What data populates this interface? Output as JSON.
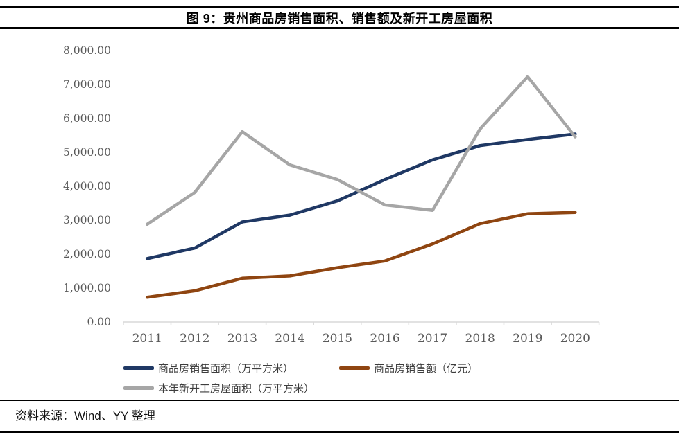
{
  "header": {
    "title": "图 9：贵州商品房销售面积、销售额及新开工房屋面积"
  },
  "footer": {
    "source": "资料来源：Wind、YY 整理"
  },
  "chart_data": {
    "type": "line",
    "title": "图 9：贵州商品房销售面积、销售额及新开工房屋面积",
    "x": [
      2011,
      2012,
      2013,
      2014,
      2015,
      2016,
      2017,
      2018,
      2019,
      2020
    ],
    "series": [
      {
        "name": "商品房销售面积（万平方米）",
        "color": "#1F3864",
        "values": [
          1870,
          2180,
          2950,
          3150,
          3570,
          4200,
          4780,
          5200,
          5380,
          5540
        ]
      },
      {
        "name": "商品房销售额（亿元）",
        "color": "#8F4511",
        "values": [
          730,
          920,
          1290,
          1360,
          1600,
          1800,
          2300,
          2900,
          3190,
          3230
        ]
      },
      {
        "name": "本年新开工房屋面积（万平方米）",
        "color": "#A6A6A6",
        "values": [
          2880,
          3820,
          5610,
          4630,
          4200,
          3450,
          3290,
          5690,
          7230,
          5460
        ]
      }
    ],
    "xlabel": "",
    "ylabel": "",
    "ylim": [
      0,
      8000
    ],
    "ytick_step": 1000,
    "ytick_labels": [
      "0.00",
      "1,000.00",
      "2,000.00",
      "3,000.00",
      "4,000.00",
      "5,000.00",
      "6,000.00",
      "7,000.00",
      "8,000.00"
    ],
    "grid": false,
    "legend_position": "bottom-left",
    "axis_line_color": "#D9D9D9",
    "tick_label_color": "#595959"
  }
}
